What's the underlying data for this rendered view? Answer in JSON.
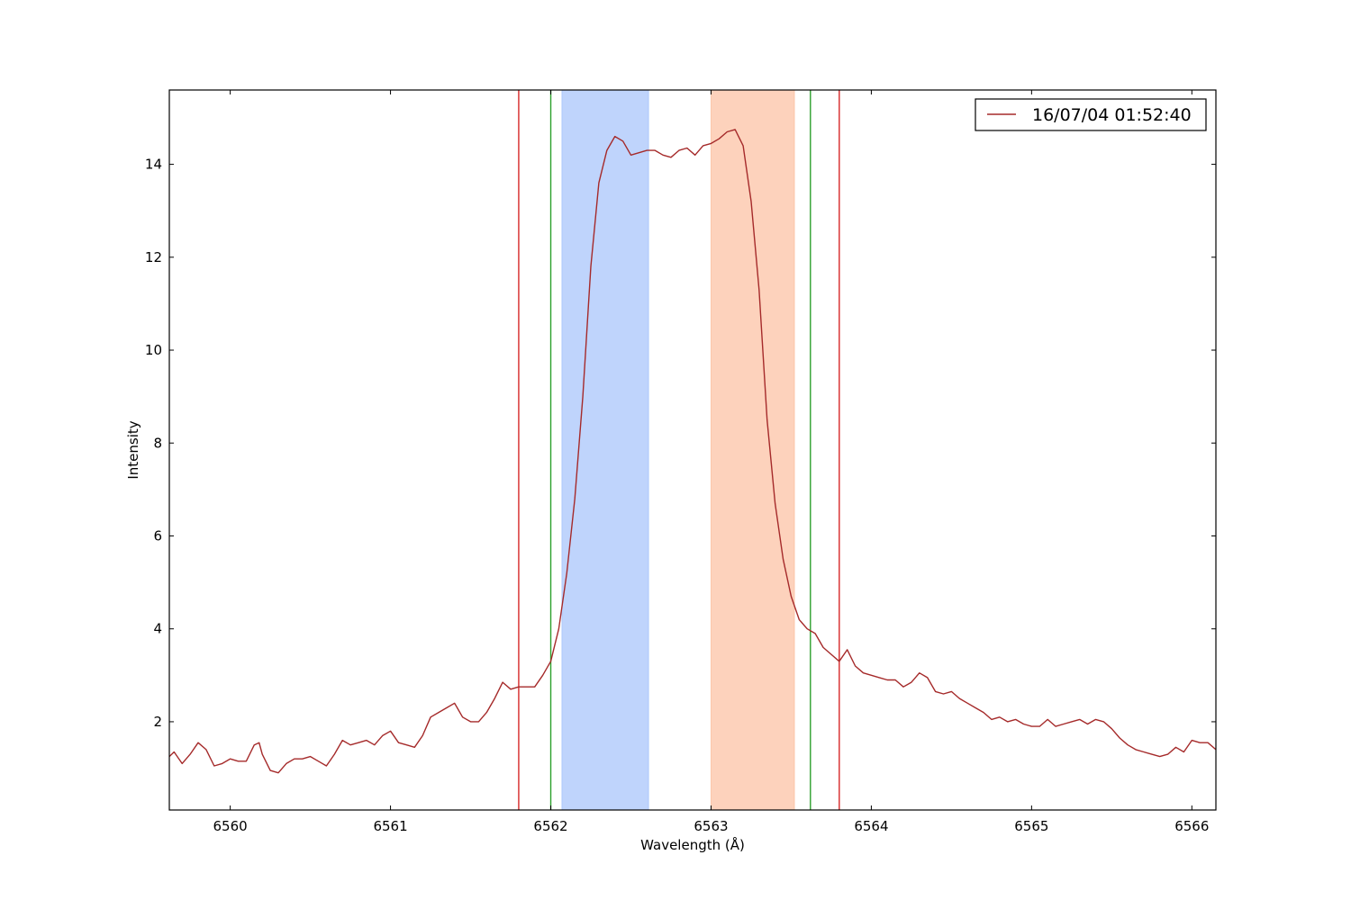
{
  "chart_data": {
    "type": "line",
    "xlabel": "Wavelength (Å)",
    "ylabel": "Intensity",
    "xlim": [
      6559.62,
      6566.15
    ],
    "ylim": [
      0.1,
      15.6
    ],
    "xticks": [
      6560,
      6561,
      6562,
      6563,
      6564,
      6565,
      6566
    ],
    "yticks": [
      2,
      4,
      6,
      8,
      10,
      12,
      14
    ],
    "grid": false,
    "legend": {
      "position": "top-right",
      "entries": [
        "16/07/04 01:52:40"
      ]
    },
    "series": [
      {
        "name": "16/07/04 01:52:40",
        "color": "#a52a2a",
        "x": [
          6559.62,
          6559.65,
          6559.7,
          6559.75,
          6559.8,
          6559.85,
          6559.9,
          6559.95,
          6560.0,
          6560.05,
          6560.1,
          6560.15,
          6560.18,
          6560.2,
          6560.25,
          6560.3,
          6560.35,
          6560.4,
          6560.45,
          6560.5,
          6560.55,
          6560.6,
          6560.65,
          6560.7,
          6560.75,
          6560.8,
          6560.85,
          6560.9,
          6560.95,
          6561.0,
          6561.05,
          6561.1,
          6561.15,
          6561.2,
          6561.25,
          6561.3,
          6561.35,
          6561.4,
          6561.45,
          6561.5,
          6561.55,
          6561.6,
          6561.65,
          6561.7,
          6561.75,
          6561.8,
          6561.85,
          6561.9,
          6561.95,
          6562.0,
          6562.05,
          6562.1,
          6562.15,
          6562.2,
          6562.25,
          6562.3,
          6562.35,
          6562.4,
          6562.45,
          6562.5,
          6562.55,
          6562.6,
          6562.65,
          6562.7,
          6562.75,
          6562.8,
          6562.85,
          6562.9,
          6562.95,
          6563.0,
          6563.05,
          6563.1,
          6563.15,
          6563.2,
          6563.25,
          6563.3,
          6563.35,
          6563.4,
          6563.45,
          6563.5,
          6563.55,
          6563.6,
          6563.65,
          6563.7,
          6563.75,
          6563.8,
          6563.85,
          6563.9,
          6563.95,
          6564.0,
          6564.05,
          6564.1,
          6564.15,
          6564.2,
          6564.25,
          6564.3,
          6564.35,
          6564.4,
          6564.45,
          6564.5,
          6564.55,
          6564.6,
          6564.65,
          6564.7,
          6564.75,
          6564.8,
          6564.85,
          6564.9,
          6564.95,
          6565.0,
          6565.05,
          6565.1,
          6565.15,
          6565.2,
          6565.25,
          6565.3,
          6565.35,
          6565.4,
          6565.45,
          6565.5,
          6565.55,
          6565.6,
          6565.65,
          6565.7,
          6565.75,
          6565.8,
          6565.85,
          6565.9,
          6565.95,
          6566.0,
          6566.05,
          6566.1,
          6566.15
        ],
        "y": [
          1.25,
          1.35,
          1.1,
          1.3,
          1.55,
          1.4,
          1.05,
          1.1,
          1.2,
          1.15,
          1.15,
          1.5,
          1.55,
          1.3,
          0.95,
          0.9,
          1.1,
          1.2,
          1.2,
          1.25,
          1.15,
          1.05,
          1.3,
          1.6,
          1.5,
          1.55,
          1.6,
          1.5,
          1.7,
          1.8,
          1.55,
          1.5,
          1.45,
          1.7,
          2.1,
          2.2,
          2.3,
          2.4,
          2.1,
          2.0,
          2.0,
          2.2,
          2.5,
          2.85,
          2.7,
          2.75,
          2.75,
          2.75,
          3.0,
          3.3,
          4.0,
          5.2,
          6.8,
          9.0,
          11.8,
          13.6,
          14.3,
          14.6,
          14.5,
          14.2,
          14.25,
          14.3,
          14.3,
          14.2,
          14.15,
          14.3,
          14.35,
          14.2,
          14.4,
          14.45,
          14.55,
          14.7,
          14.75,
          14.4,
          13.2,
          11.3,
          8.5,
          6.7,
          5.5,
          4.7,
          4.2,
          4.0,
          3.9,
          3.6,
          3.45,
          3.3,
          3.55,
          3.2,
          3.05,
          3.0,
          2.95,
          2.9,
          2.9,
          2.75,
          2.85,
          3.05,
          2.95,
          2.65,
          2.6,
          2.65,
          2.5,
          2.4,
          2.3,
          2.2,
          2.05,
          2.1,
          2.0,
          2.05,
          1.95,
          1.9,
          1.9,
          2.05,
          1.9,
          1.95,
          2.0,
          2.05,
          1.95,
          2.05,
          2.0,
          1.85,
          1.65,
          1.5,
          1.4,
          1.35,
          1.3,
          1.25,
          1.3,
          1.45,
          1.35,
          1.6,
          1.55,
          1.55,
          1.4
        ]
      }
    ],
    "vertical_lines": [
      {
        "x": 6561.8,
        "color": "#d62728"
      },
      {
        "x": 6562.0,
        "color": "#2ca02c"
      },
      {
        "x": 6563.62,
        "color": "#2ca02c"
      },
      {
        "x": 6563.8,
        "color": "#d62728"
      }
    ],
    "shaded_regions": [
      {
        "x0": 6562.07,
        "x1": 6562.61,
        "color": "#a9c6fb"
      },
      {
        "x0": 6563.0,
        "x1": 6563.52,
        "color": "#fcc3a6"
      }
    ]
  }
}
